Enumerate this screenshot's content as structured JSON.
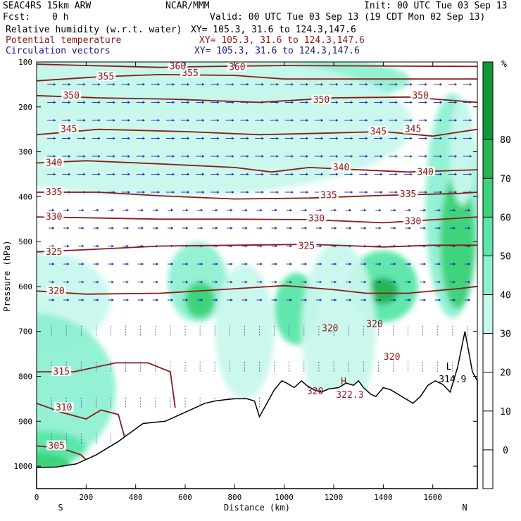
{
  "header": {
    "model": "SEAC4RS 15km ARW",
    "org": "NCAR/MMM",
    "init": "Init: 00 UTC Tue 03 Sep 13",
    "fcst_label": "Fcst:",
    "fcst_value": "0 h",
    "valid": "Valid: 00 UTC Tue 03 Sep 13 (19 CDT Mon 02 Sep 13)",
    "fields": [
      {
        "name": "Relative humidity (w.r.t. water)",
        "xy": "XY= 105.3, 31.6 to 124.3,147.6",
        "color": "#000000"
      },
      {
        "name": "Potential temperature",
        "xy": "XY= 105.3, 31.6 to 124.3,147.6",
        "color": "#8b1a1a"
      },
      {
        "name": "Circulation vectors",
        "xy": "XY= 105.3, 31.6 to 124.3,147.6",
        "color": "#1a1a8b"
      }
    ]
  },
  "chart_data": {
    "type": "heatmap",
    "xlabel": "Distance (km)",
    "ylabel": "Pressure (hPa)",
    "xlim": [
      0,
      1780
    ],
    "ylim": [
      1050,
      100
    ],
    "x_ticks": [
      0,
      200,
      400,
      600,
      800,
      1000,
      1200,
      1400,
      1600
    ],
    "y_ticks": [
      100,
      200,
      300,
      400,
      500,
      600,
      700,
      800,
      900,
      1000
    ],
    "endpoint_labels": {
      "left": "S",
      "right": "N"
    },
    "colorbar": {
      "unit": "%",
      "ticks": [
        80,
        70,
        60,
        50,
        40,
        30,
        20,
        10,
        0
      ],
      "levels": [
        {
          "min": 30,
          "max": 40,
          "color": "#c8f8ec"
        },
        {
          "min": 40,
          "max": 50,
          "color": "#8ef0d2"
        },
        {
          "min": 50,
          "max": 60,
          "color": "#5ae6aa"
        },
        {
          "min": 60,
          "max": 70,
          "color": "#3cd27a"
        },
        {
          "min": 70,
          "max": 80,
          "color": "#26b455"
        },
        {
          "min": 80,
          "max": 100,
          "color": "#14963c"
        }
      ]
    },
    "theta_isentropes": [
      {
        "label": "305",
        "points": [
          [
            0,
            955
          ],
          [
            100,
            960
          ],
          [
            180,
            975
          ],
          [
            230,
            1003
          ]
        ],
        "labels": [
          [
            80,
            955
          ]
        ]
      },
      {
        "label": "310",
        "points": [
          [
            0,
            860
          ],
          [
            100,
            880
          ],
          [
            200,
            895
          ],
          [
            260,
            875
          ],
          [
            330,
            885
          ],
          [
            360,
            945
          ],
          [
            370,
            1003
          ]
        ],
        "labels": [
          [
            110,
            870
          ]
        ]
      },
      {
        "label": "315",
        "points": [
          [
            0,
            790
          ],
          [
            150,
            790
          ],
          [
            320,
            770
          ],
          [
            450,
            770
          ],
          [
            540,
            790
          ],
          [
            560,
            870
          ]
        ],
        "labels": [
          [
            100,
            790
          ]
        ],
        "closed_lh": true
      },
      {
        "label": "320",
        "points": [
          [
            0,
            610
          ],
          [
            200,
            617
          ],
          [
            500,
            615
          ],
          [
            800,
            605
          ],
          [
            1000,
            598
          ],
          [
            1200,
            607
          ],
          [
            1330,
            615
          ],
          [
            1500,
            615
          ],
          [
            1700,
            605
          ],
          [
            1780,
            600
          ]
        ],
        "labels": [
          [
            80,
            610
          ]
        ]
      },
      {
        "label": "325",
        "points": [
          [
            0,
            523
          ],
          [
            200,
            518
          ],
          [
            500,
            510
          ],
          [
            800,
            508
          ],
          [
            1100,
            506
          ],
          [
            1400,
            512
          ],
          [
            1600,
            508
          ],
          [
            1780,
            508
          ]
        ],
        "labels": [
          [
            70,
            523
          ],
          [
            1090,
            510
          ]
        ]
      },
      {
        "label": "330",
        "points": [
          [
            0,
            445
          ],
          [
            200,
            447
          ],
          [
            500,
            450
          ],
          [
            800,
            450
          ],
          [
            1100,
            451
          ],
          [
            1400,
            458
          ],
          [
            1700,
            448
          ],
          [
            1780,
            445
          ]
        ],
        "labels": [
          [
            70,
            445
          ],
          [
            1130,
            449
          ],
          [
            1520,
            455
          ]
        ]
      },
      {
        "label": "335",
        "points": [
          [
            0,
            390
          ],
          [
            250,
            390
          ],
          [
            500,
            398
          ],
          [
            800,
            405
          ],
          [
            1100,
            403
          ],
          [
            1400,
            397
          ],
          [
            1700,
            393
          ],
          [
            1780,
            390
          ]
        ],
        "labels": [
          [
            70,
            390
          ],
          [
            1180,
            397
          ],
          [
            1500,
            395
          ]
        ]
      },
      {
        "label": "340",
        "points": [
          [
            0,
            325
          ],
          [
            200,
            320
          ],
          [
            500,
            327
          ],
          [
            800,
            335
          ],
          [
            950,
            345
          ],
          [
            1100,
            335
          ],
          [
            1300,
            340
          ],
          [
            1500,
            345
          ],
          [
            1780,
            340
          ]
        ],
        "labels": [
          [
            70,
            325
          ],
          [
            1230,
            335
          ],
          [
            1570,
            345
          ]
        ]
      },
      {
        "label": "345",
        "points": [
          [
            0,
            262
          ],
          [
            250,
            250
          ],
          [
            600,
            255
          ],
          [
            900,
            262
          ],
          [
            1200,
            258
          ],
          [
            1400,
            255
          ],
          [
            1600,
            265
          ],
          [
            1780,
            250
          ]
        ],
        "labels": [
          [
            130,
            250
          ],
          [
            1380,
            255
          ],
          [
            1520,
            250
          ]
        ]
      },
      {
        "label": "350",
        "points": [
          [
            0,
            175
          ],
          [
            250,
            180
          ],
          [
            550,
            183
          ],
          [
            900,
            190
          ],
          [
            1200,
            180
          ],
          [
            1500,
            178
          ],
          [
            1780,
            190
          ]
        ],
        "labels": [
          [
            140,
            175
          ],
          [
            1150,
            185
          ],
          [
            1550,
            175
          ]
        ]
      },
      {
        "label": "355",
        "points": [
          [
            0,
            142
          ],
          [
            250,
            133
          ],
          [
            500,
            128
          ],
          [
            800,
            130
          ],
          [
            1000,
            138
          ],
          [
            1300,
            138
          ],
          [
            1780,
            138
          ]
        ],
        "labels": [
          [
            280,
            133
          ],
          [
            620,
            125
          ]
        ]
      },
      {
        "label": "360",
        "points": [
          [
            0,
            105
          ],
          [
            500,
            112
          ],
          [
            700,
            110
          ],
          [
            1000,
            108
          ],
          [
            1780,
            110
          ]
        ],
        "labels": [
          [
            570,
            110
          ],
          [
            810,
            112
          ]
        ]
      }
    ],
    "annotations": [
      {
        "text": "320",
        "x": 1185,
        "p": 700,
        "color": "#8b1a1a"
      },
      {
        "text": "320",
        "x": 1365,
        "p": 690,
        "color": "#8b1a1a"
      },
      {
        "text": "320",
        "x": 1435,
        "p": 763,
        "color": "#8b1a1a"
      },
      {
        "text": "320",
        "x": 1125,
        "p": 840,
        "color": "#8b1a1a"
      },
      {
        "text": "H",
        "x": 1240,
        "p": 818,
        "color": "#8b1a1a"
      },
      {
        "text": "322.3",
        "x": 1265,
        "p": 848,
        "color": "#8b1a1a"
      },
      {
        "text": "L",
        "x": 1665,
        "p": 785,
        "color": "#000000"
      },
      {
        "text": "314.9",
        "x": 1680,
        "p": 813,
        "color": "#000000"
      }
    ],
    "terrain": [
      [
        0,
        1003
      ],
      [
        80,
        1002
      ],
      [
        160,
        995
      ],
      [
        240,
        975
      ],
      [
        330,
        945
      ],
      [
        430,
        905
      ],
      [
        520,
        900
      ],
      [
        560,
        890
      ],
      [
        600,
        880
      ],
      [
        640,
        870
      ],
      [
        680,
        860
      ],
      [
        720,
        855
      ],
      [
        760,
        852
      ],
      [
        800,
        850
      ],
      [
        850,
        850
      ],
      [
        880,
        855
      ],
      [
        900,
        890
      ],
      [
        930,
        860
      ],
      [
        960,
        830
      ],
      [
        990,
        810
      ],
      [
        1010,
        815
      ],
      [
        1040,
        825
      ],
      [
        1070,
        810
      ],
      [
        1090,
        820
      ],
      [
        1120,
        830
      ],
      [
        1150,
        835
      ],
      [
        1180,
        828
      ],
      [
        1220,
        825
      ],
      [
        1250,
        815
      ],
      [
        1280,
        820
      ],
      [
        1300,
        810
      ],
      [
        1320,
        825
      ],
      [
        1350,
        840
      ],
      [
        1370,
        845
      ],
      [
        1400,
        825
      ],
      [
        1430,
        830
      ],
      [
        1460,
        840
      ],
      [
        1490,
        850
      ],
      [
        1520,
        860
      ],
      [
        1550,
        845
      ],
      [
        1580,
        820
      ],
      [
        1610,
        810
      ],
      [
        1640,
        818
      ],
      [
        1670,
        835
      ],
      [
        1700,
        780
      ],
      [
        1730,
        700
      ],
      [
        1760,
        790
      ],
      [
        1780,
        810
      ]
    ]
  }
}
